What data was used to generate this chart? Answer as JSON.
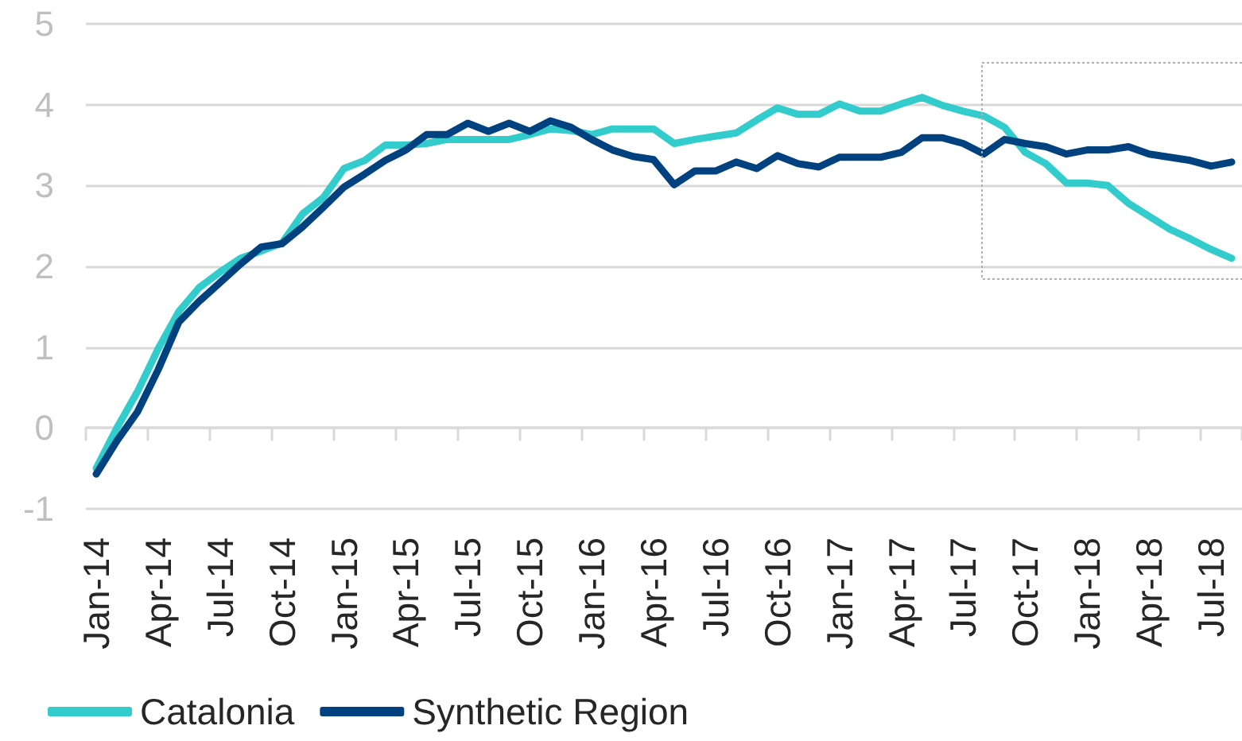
{
  "chart_data": {
    "type": "line",
    "categories": [
      "Jan-14",
      null,
      null,
      "Apr-14",
      null,
      null,
      "Jul-14",
      null,
      null,
      "Oct-14",
      null,
      null,
      "Jan-15",
      null,
      null,
      "Apr-15",
      null,
      null,
      "Jul-15",
      null,
      null,
      "Oct-15",
      null,
      null,
      "Jan-16",
      null,
      null,
      "Apr-16",
      null,
      null,
      "Jul-16",
      null,
      null,
      "Oct-16",
      null,
      null,
      "Jan-17",
      null,
      null,
      "Apr-17",
      null,
      null,
      "Jul-17",
      null,
      null,
      "Oct-17",
      null,
      null,
      "Jan-18",
      null,
      null,
      "Apr-18",
      null,
      null,
      "Jul-18",
      null
    ],
    "series": [
      {
        "name": "Catalonia",
        "color": "#33cccc",
        "values": [
          -0.5,
          0.0,
          0.45,
          0.98,
          1.44,
          1.74,
          1.93,
          2.1,
          2.19,
          2.29,
          2.65,
          2.85,
          3.21,
          3.31,
          3.5,
          3.5,
          3.52,
          3.57,
          3.57,
          3.57,
          3.57,
          3.63,
          3.7,
          3.68,
          3.63,
          3.7,
          3.7,
          3.7,
          3.52,
          3.57,
          3.61,
          3.65,
          3.81,
          3.96,
          3.88,
          3.88,
          4.01,
          3.92,
          3.92,
          4.01,
          4.09,
          3.99,
          3.92,
          3.86,
          3.72,
          3.41,
          3.27,
          3.03,
          3.03,
          3.0,
          2.78,
          2.62,
          2.46,
          2.34,
          2.21,
          2.1
        ]
      },
      {
        "name": "Synthetic Region",
        "color": "#00427f",
        "values": [
          -0.57,
          -0.16,
          0.2,
          0.72,
          1.31,
          1.57,
          1.8,
          2.03,
          2.24,
          2.28,
          2.49,
          2.73,
          2.98,
          3.14,
          3.31,
          3.44,
          3.63,
          3.63,
          3.77,
          3.67,
          3.77,
          3.67,
          3.8,
          3.72,
          3.57,
          3.44,
          3.36,
          3.32,
          3.01,
          3.18,
          3.18,
          3.29,
          3.21,
          3.37,
          3.27,
          3.23,
          3.35,
          3.35,
          3.35,
          3.41,
          3.59,
          3.59,
          3.52,
          3.39,
          3.57,
          3.52,
          3.48,
          3.39,
          3.44,
          3.44,
          3.48,
          3.39,
          3.35,
          3.31,
          3.24,
          3.29
        ]
      }
    ],
    "ylim": [
      -1,
      5
    ],
    "yticks": [
      -1,
      0,
      1,
      2,
      3,
      4,
      5
    ],
    "grid": "y",
    "legend": "bottom left",
    "line_style": "solid"
  }
}
